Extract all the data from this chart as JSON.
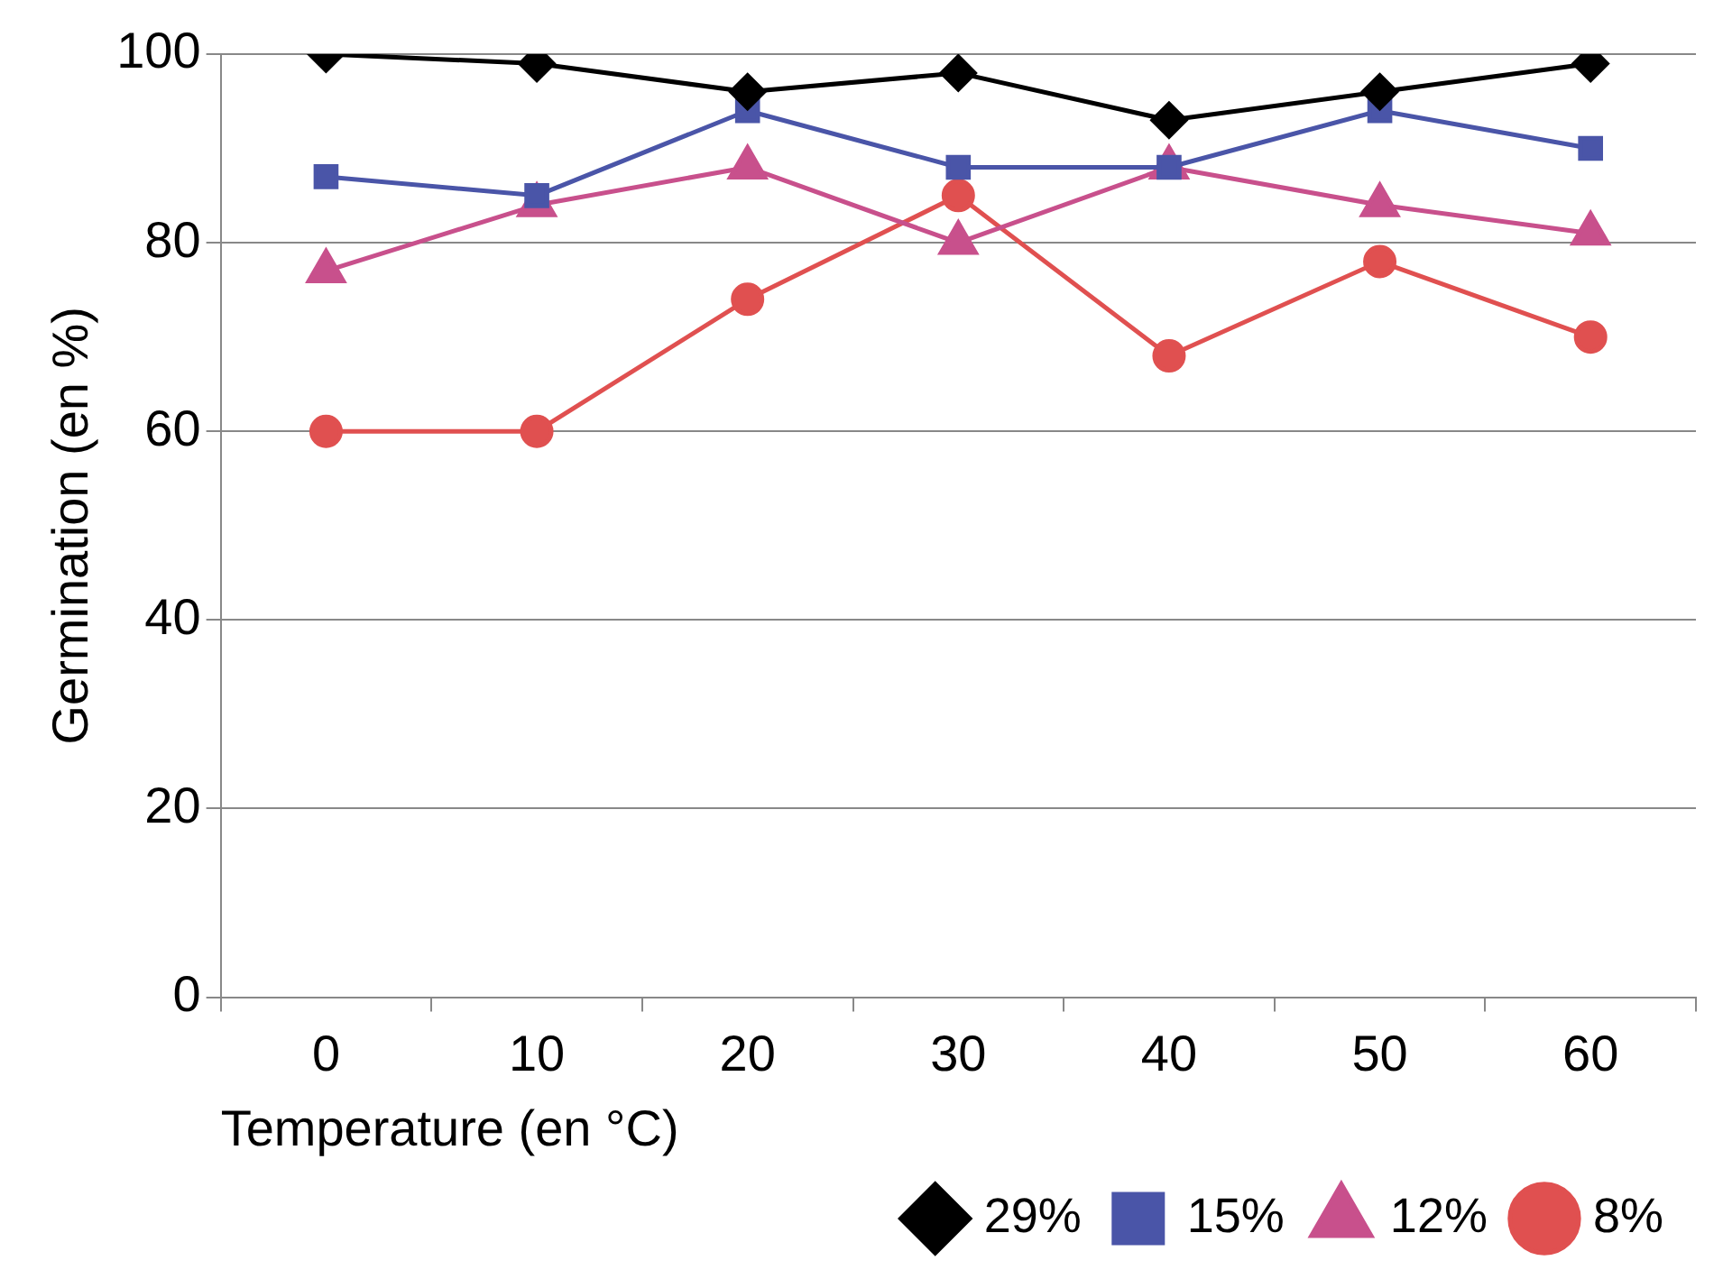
{
  "chart_data": {
    "type": "line",
    "xlabel": "Temperature (en °C)",
    "ylabel": "Germination (en %)",
    "categories": [
      "0",
      "10",
      "20",
      "30",
      "40",
      "50",
      "60"
    ],
    "series": [
      {
        "name": "29%",
        "color": "#000000",
        "marker": "diamond",
        "values": [
          100,
          99,
          96,
          98,
          93,
          96,
          99
        ]
      },
      {
        "name": "15%",
        "color": "#4a55a8",
        "marker": "square",
        "values": [
          87,
          85,
          94,
          88,
          88,
          94,
          90
        ]
      },
      {
        "name": "12%",
        "color": "#c8508c",
        "marker": "triangle",
        "values": [
          77,
          84,
          88,
          80,
          88,
          84,
          81
        ]
      },
      {
        "name": "8%",
        "color": "#e05050",
        "marker": "circle",
        "values": [
          60,
          60,
          74,
          85,
          68,
          78,
          70
        ]
      }
    ],
    "ylim": [
      0,
      100
    ],
    "yticks": [
      0,
      20,
      40,
      60,
      80,
      100
    ],
    "grid": "y",
    "legend": "bottom right",
    "line_style": "solid"
  }
}
